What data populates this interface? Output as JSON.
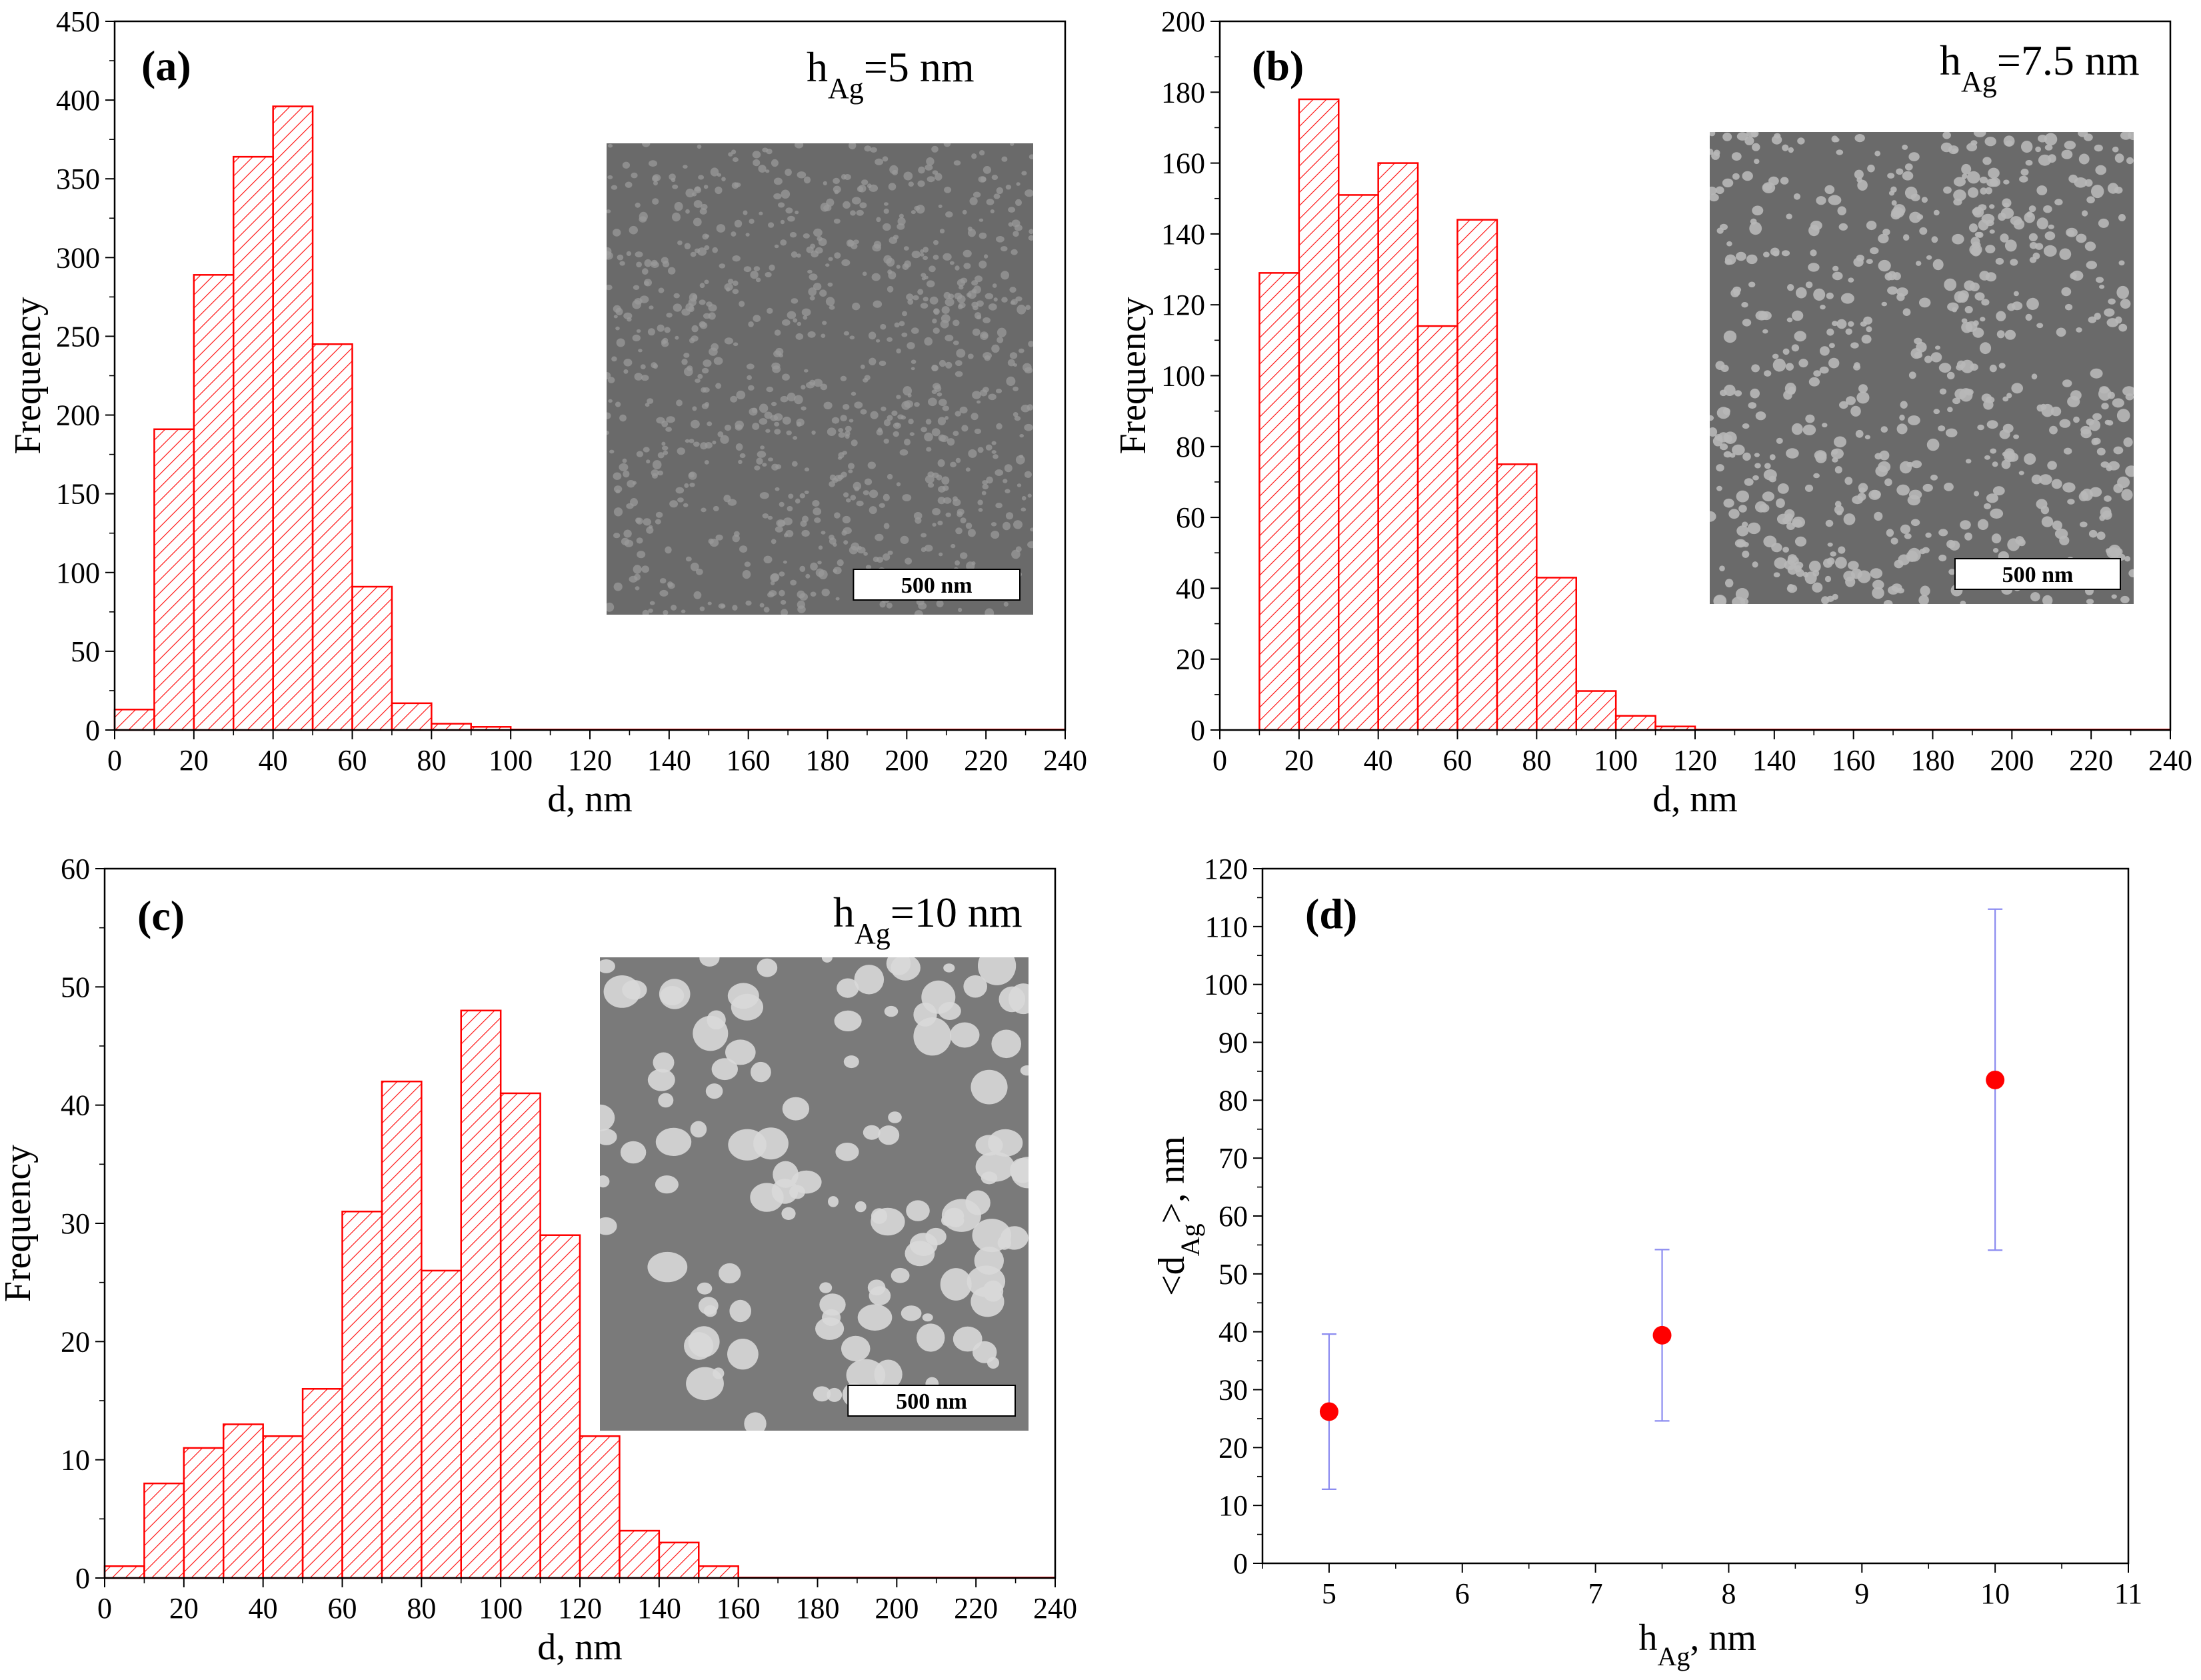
{
  "chart_data": [
    {
      "panel": "(a)",
      "type": "bar",
      "annotation": {
        "main": "h",
        "sub": "Ag",
        "tail": "=5 nm"
      },
      "xlabel": "d, nm",
      "ylabel": "Frequency",
      "xlim": [
        0,
        240
      ],
      "ylim": [
        0,
        450
      ],
      "xticks": [
        0,
        20,
        40,
        60,
        80,
        100,
        120,
        140,
        160,
        180,
        200,
        220,
        240
      ],
      "yticks": [
        0,
        50,
        100,
        150,
        200,
        250,
        300,
        350,
        400,
        450
      ],
      "bin_width": 10,
      "bins": [
        0,
        10,
        20,
        30,
        40,
        50,
        60,
        70,
        80,
        90
      ],
      "values": [
        13,
        191,
        289,
        364,
        396,
        245,
        91,
        17,
        4,
        2
      ],
      "inset": {
        "scale_label": "500 nm",
        "texture": "fine"
      }
    },
    {
      "panel": "(b)",
      "type": "bar",
      "annotation": {
        "main": "h",
        "sub": "Ag",
        "tail": "=7.5 nm"
      },
      "xlabel": "d, nm",
      "ylabel": "Frequency",
      "xlim": [
        0,
        240
      ],
      "ylim": [
        0,
        200
      ],
      "xticks": [
        0,
        20,
        40,
        60,
        80,
        100,
        120,
        140,
        160,
        180,
        200,
        220,
        240
      ],
      "yticks": [
        0,
        20,
        40,
        60,
        80,
        100,
        120,
        140,
        160,
        180,
        200
      ],
      "bin_width": 10,
      "bins": [
        10,
        20,
        30,
        40,
        50,
        60,
        70,
        80,
        90,
        100,
        110
      ],
      "values": [
        129,
        178,
        151,
        160,
        114,
        144,
        75,
        43,
        11,
        4,
        1
      ],
      "inset": {
        "scale_label": "500 nm",
        "texture": "medium"
      }
    },
    {
      "panel": "(c)",
      "type": "bar",
      "annotation": {
        "main": "h",
        "sub": "Ag",
        "tail": "=10 nm"
      },
      "xlabel": "d, nm",
      "ylabel": "Frequency",
      "xlim": [
        0,
        240
      ],
      "ylim": [
        0,
        60
      ],
      "xticks": [
        0,
        20,
        40,
        60,
        80,
        100,
        120,
        140,
        160,
        180,
        200,
        220,
        240
      ],
      "yticks": [
        0,
        10,
        20,
        30,
        40,
        50,
        60
      ],
      "bin_width": 10,
      "bins": [
        0,
        10,
        20,
        30,
        40,
        50,
        60,
        70,
        80,
        90,
        100,
        110,
        120,
        130,
        140,
        150
      ],
      "values": [
        1,
        8,
        11,
        13,
        12,
        16,
        31,
        42,
        26,
        48,
        41,
        29,
        12,
        4,
        3,
        1
      ],
      "inset": {
        "scale_label": "500 nm",
        "texture": "coarse"
      }
    },
    {
      "panel": "(d)",
      "type": "scatter",
      "xlabel": {
        "main": "h",
        "sub": "Ag",
        "tail": ", nm"
      },
      "ylabel": {
        "pre": "<d",
        "sub": "Ag",
        "tail": ">, nm"
      },
      "xlim": [
        4.5,
        11
      ],
      "ylim": [
        0,
        120
      ],
      "xticks": [
        5,
        6,
        7,
        8,
        9,
        10,
        11
      ],
      "yticks": [
        0,
        10,
        20,
        30,
        40,
        50,
        60,
        70,
        80,
        90,
        100,
        110,
        120
      ],
      "x": [
        5,
        7.5,
        10
      ],
      "y": [
        26.2,
        39.4,
        83.5
      ],
      "err_low": [
        12.8,
        24.6,
        54.1
      ],
      "err_high": [
        39.6,
        54.2,
        113.0
      ],
      "marker_color": "#ff0000",
      "errorbar_color": "#8c8cf0"
    }
  ],
  "colors": {
    "bar_edge": "#ff0000",
    "hatch": "#ff0000"
  }
}
